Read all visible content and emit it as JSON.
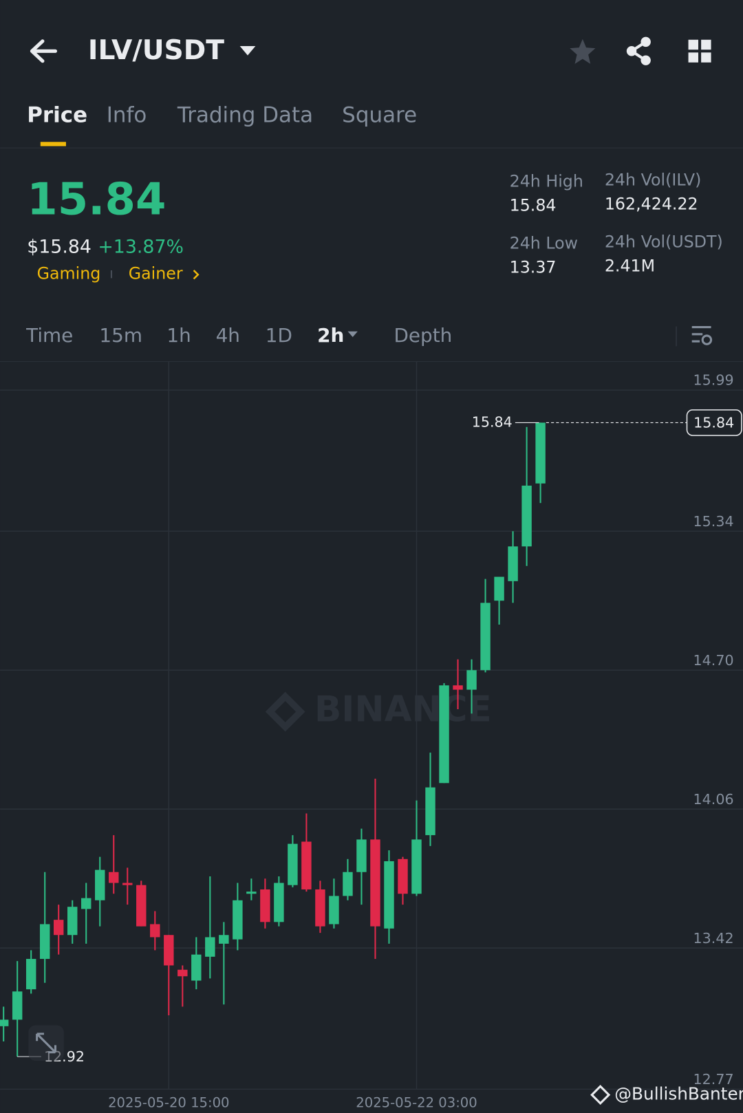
{
  "header": {
    "pair": "ILV/USDT"
  },
  "tabs": [
    "Price",
    "Info",
    "Trading Data",
    "Square"
  ],
  "ticker": {
    "price": "15.84",
    "usd_price": "$15.84",
    "change": "+13.87%",
    "tags": [
      "Gaming",
      "Gainer"
    ]
  },
  "stats": [
    {
      "label": "24h High",
      "value": "15.84"
    },
    {
      "label": "24h Vol(ILV)",
      "value": "162,424.22"
    },
    {
      "label": "24h Low",
      "value": "13.37"
    },
    {
      "label": "24h Vol(USDT)",
      "value": "2.41M"
    }
  ],
  "intervals": [
    "Time",
    "15m",
    "1h",
    "4h",
    "1D",
    "2h",
    "Depth"
  ],
  "watermark": "BINANCE",
  "credit": "@BullishBanter",
  "chart_data": {
    "type": "candlestick",
    "categories": [
      null,
      null,
      null,
      null,
      null,
      null,
      null,
      null,
      null,
      null,
      null,
      null,
      "2025-05-20 15:00",
      null,
      null,
      null,
      null,
      null,
      null,
      null,
      null,
      null,
      null,
      null,
      null,
      null,
      null,
      null,
      null,
      null,
      "2025-05-22 03:00",
      null,
      null,
      null,
      null,
      null,
      null,
      null,
      null,
      null
    ],
    "open": [
      13.06,
      13.09,
      13.23,
      13.37,
      13.55,
      13.48,
      13.6,
      13.64,
      13.77,
      13.72,
      13.71,
      13.53,
      13.48,
      13.32,
      13.27,
      13.38,
      13.44,
      13.46,
      13.67,
      13.69,
      13.54,
      13.71,
      13.91,
      13.69,
      13.53,
      13.66,
      13.77,
      13.92,
      13.51,
      13.83,
      13.67,
      13.94,
      14.18,
      14.63,
      14.61,
      14.7,
      15.02,
      15.11,
      15.27,
      15.56
    ],
    "high": [
      13.15,
      13.36,
      13.41,
      13.77,
      13.62,
      13.64,
      13.72,
      13.84,
      13.94,
      13.79,
      13.73,
      13.59,
      13.48,
      13.34,
      13.47,
      13.75,
      13.54,
      13.72,
      13.74,
      13.74,
      13.75,
      13.94,
      14.04,
      13.73,
      13.74,
      13.83,
      13.97,
      14.2,
      13.87,
      13.84,
      14.1,
      14.32,
      14.64,
      14.75,
      14.75,
      15.12,
      15.13,
      15.34,
      15.82,
      15.84
    ],
    "low": [
      12.99,
      12.92,
      13.21,
      13.26,
      13.39,
      13.44,
      13.44,
      13.52,
      13.67,
      13.62,
      13.52,
      13.41,
      13.11,
      13.15,
      13.23,
      13.28,
      13.16,
      13.41,
      13.64,
      13.51,
      13.52,
      13.7,
      13.68,
      13.49,
      13.51,
      13.64,
      13.62,
      13.37,
      13.44,
      13.62,
      13.66,
      13.89,
      14.18,
      14.52,
      14.5,
      14.69,
      14.91,
      15.01,
      15.18,
      15.47
    ],
    "close": [
      13.09,
      13.22,
      13.37,
      13.53,
      13.48,
      13.61,
      13.65,
      13.78,
      13.72,
      13.71,
      13.52,
      13.47,
      13.34,
      13.29,
      13.39,
      13.47,
      13.48,
      13.64,
      13.68,
      13.54,
      13.72,
      13.9,
      13.69,
      13.52,
      13.66,
      13.77,
      13.92,
      13.52,
      13.82,
      13.67,
      13.92,
      14.16,
      14.63,
      14.61,
      14.7,
      15.01,
      15.13,
      15.27,
      15.55,
      15.84
    ],
    "up_color": "#2ebd85",
    "down_color": "#e0294a",
    "ylim": [
      12.77,
      16.12
    ],
    "yticks": [
      15.99,
      15.34,
      {
        "value": 14.7,
        "label": "14.70"
      },
      14.06,
      13.42,
      12.77
    ],
    "grid": true,
    "high_annotation": 15.84,
    "low_annotation": 12.92,
    "last_price": 15.84
  }
}
